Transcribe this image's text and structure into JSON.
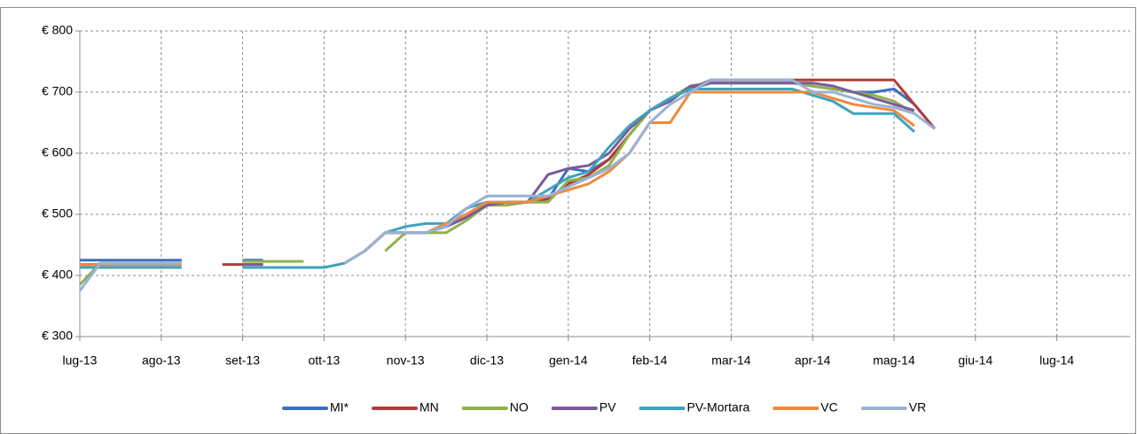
{
  "chart_data": {
    "type": "line",
    "x": [
      0,
      0.25,
      0.5,
      0.75,
      1,
      1.25,
      1.5,
      1.75,
      2,
      2.25,
      2.5,
      2.75,
      3,
      3.25,
      3.5,
      3.75,
      4,
      4.25,
      4.5,
      4.75,
      5,
      5.25,
      5.5,
      5.75,
      6,
      6.25,
      6.5,
      6.75,
      7,
      7.25,
      7.5,
      7.75,
      8,
      8.25,
      8.5,
      8.75,
      9,
      9.25,
      9.5,
      9.75,
      10,
      10.25,
      10.5
    ],
    "xlim": [
      0,
      12.9
    ],
    "xticks": [
      {
        "value": 0,
        "label": "lug-13"
      },
      {
        "value": 1,
        "label": "ago-13"
      },
      {
        "value": 2,
        "label": "set-13"
      },
      {
        "value": 3,
        "label": "ott-13"
      },
      {
        "value": 4,
        "label": "nov-13"
      },
      {
        "value": 5,
        "label": "dic-13"
      },
      {
        "value": 6,
        "label": "gen-14"
      },
      {
        "value": 7,
        "label": "feb-14"
      },
      {
        "value": 8,
        "label": "mar-14"
      },
      {
        "value": 9,
        "label": "apr-14"
      },
      {
        "value": 10,
        "label": "mag-14"
      },
      {
        "value": 11,
        "label": "giu-14"
      },
      {
        "value": 12,
        "label": "lug-14"
      }
    ],
    "ylim": [
      300,
      800
    ],
    "yticks": [
      {
        "value": 300,
        "label": "€ 300"
      },
      {
        "value": 400,
        "label": "€ 400"
      },
      {
        "value": 500,
        "label": "€ 500"
      },
      {
        "value": 600,
        "label": "€ 600"
      },
      {
        "value": 700,
        "label": "€ 700"
      },
      {
        "value": 800,
        "label": "€ 800"
      }
    ],
    "grid": true,
    "legend": "bottom",
    "series": [
      {
        "name": "MI*",
        "color": "#3c6ebf",
        "values": [
          425,
          425,
          425,
          425,
          425,
          425,
          null,
          null,
          425,
          425,
          null,
          null,
          null,
          420,
          440,
          470,
          470,
          470,
          480,
          495,
          515,
          520,
          520,
          525,
          575,
          570,
          590,
          630,
          670,
          690,
          705,
          715,
          715,
          715,
          715,
          715,
          710,
          705,
          700,
          700,
          705,
          680,
          640
        ]
      },
      {
        "name": "MN",
        "color": "#b23b37",
        "values": [
          418,
          418,
          418,
          418,
          418,
          418,
          null,
          418,
          418,
          418,
          null,
          null,
          null,
          null,
          440,
          470,
          470,
          470,
          480,
          495,
          515,
          520,
          520,
          525,
          550,
          565,
          590,
          630,
          670,
          690,
          705,
          720,
          720,
          720,
          720,
          720,
          720,
          720,
          720,
          720,
          720,
          680,
          640
        ]
      },
      {
        "name": "NO",
        "color": "#8eb24e",
        "values": [
          385,
          420,
          420,
          420,
          420,
          420,
          null,
          null,
          423,
          423,
          423,
          423,
          null,
          null,
          null,
          440,
          470,
          470,
          470,
          490,
          515,
          515,
          520,
          520,
          555,
          560,
          580,
          630,
          670,
          690,
          710,
          715,
          715,
          715,
          715,
          715,
          710,
          705,
          700,
          695,
          685,
          665,
          null
        ]
      },
      {
        "name": "PV",
        "color": "#7a5c9c",
        "values": [
          418,
          418,
          418,
          418,
          418,
          418,
          null,
          null,
          418,
          418,
          null,
          null,
          null,
          null,
          440,
          470,
          470,
          470,
          480,
          495,
          515,
          520,
          520,
          565,
          575,
          580,
          600,
          640,
          670,
          685,
          710,
          715,
          715,
          715,
          715,
          715,
          715,
          710,
          700,
          690,
          680,
          670,
          null
        ]
      },
      {
        "name": "PV-Mortara",
        "color": "#3ea3bd",
        "values": [
          413,
          413,
          413,
          413,
          413,
          413,
          null,
          null,
          413,
          413,
          413,
          413,
          413,
          420,
          440,
          470,
          480,
          485,
          485,
          510,
          520,
          520,
          520,
          540,
          560,
          570,
          610,
          645,
          670,
          690,
          705,
          705,
          705,
          705,
          705,
          705,
          695,
          685,
          665,
          665,
          665,
          635,
          null
        ]
      },
      {
        "name": "VC",
        "color": "#ef8a3c",
        "values": [
          418,
          418,
          418,
          418,
          418,
          418,
          null,
          null,
          null,
          null,
          null,
          null,
          null,
          420,
          440,
          470,
          470,
          470,
          485,
          500,
          520,
          520,
          520,
          530,
          540,
          550,
          570,
          600,
          650,
          650,
          700,
          700,
          700,
          700,
          700,
          700,
          700,
          690,
          680,
          675,
          670,
          645,
          null
        ]
      },
      {
        "name": "VR",
        "color": "#98b2d8",
        "values": [
          375,
          420,
          420,
          420,
          420,
          420,
          null,
          null,
          null,
          null,
          null,
          null,
          null,
          420,
          440,
          470,
          470,
          470,
          480,
          510,
          530,
          530,
          530,
          530,
          545,
          560,
          575,
          600,
          650,
          680,
          700,
          720,
          720,
          720,
          720,
          720,
          700,
          700,
          690,
          680,
          675,
          665,
          640
        ]
      }
    ]
  }
}
